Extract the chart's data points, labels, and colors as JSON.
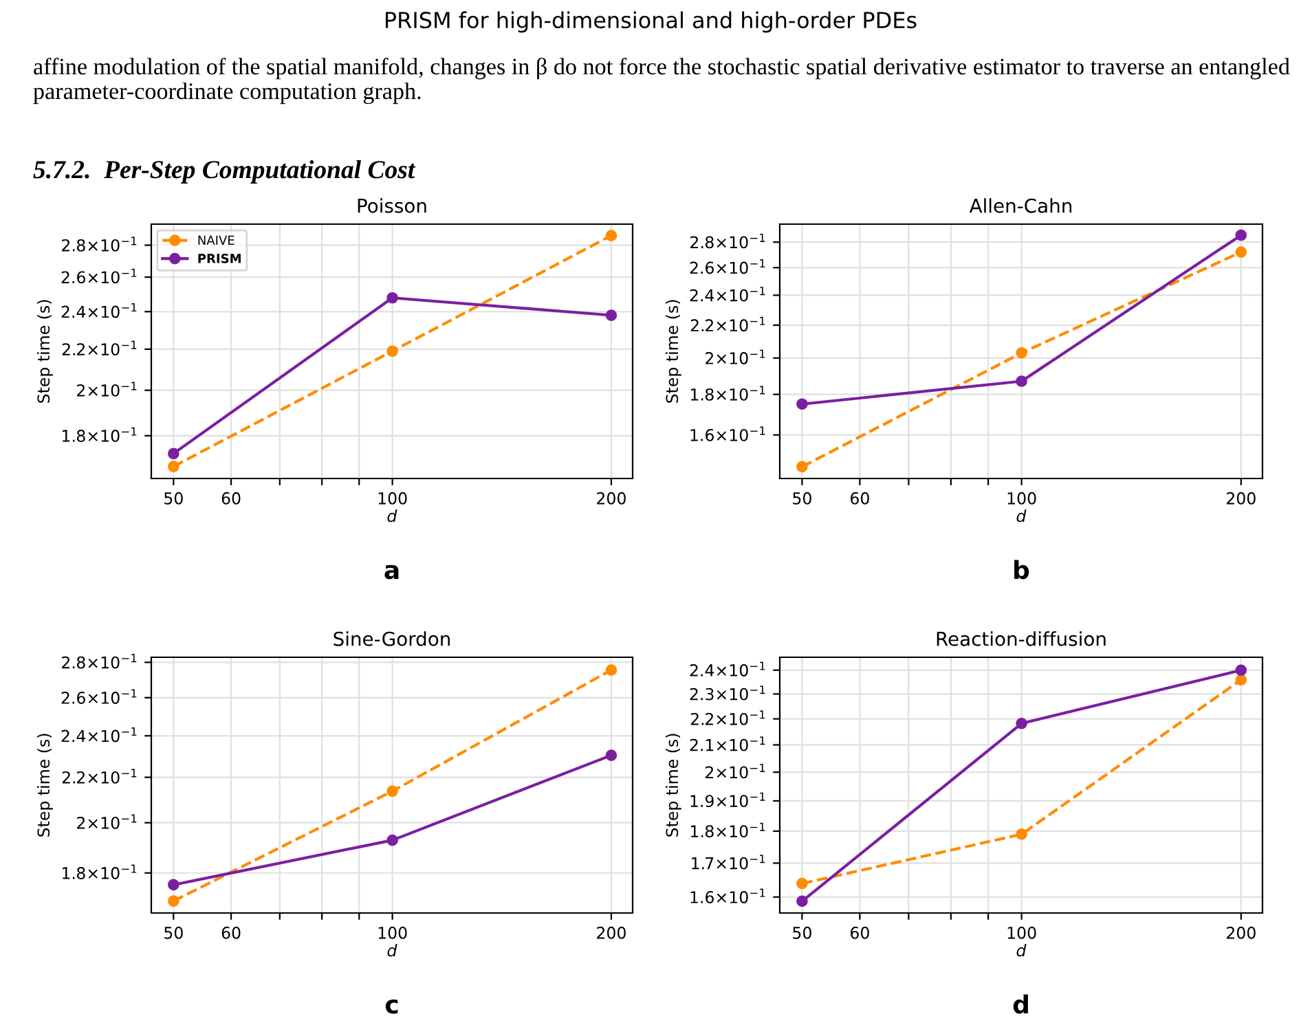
{
  "chart_data": [
    {
      "type": "line",
      "title": "Poisson",
      "xlabel": "d",
      "ylabel": "Step time (s)",
      "log": "xy",
      "grid": true,
      "legend": "top left",
      "marker": "circle",
      "annotations": [
        "PRISM for high-dimensional and high-order PDEs",
        "affine modulation of the spatial manifold, changes in β do not force the stochastic spatial derivative estimator to traverse an entangled parameter-coordinate computation graph.",
        "5.7.2.  Per-Step Computational Cost",
        "a"
      ],
      "x": [
        50,
        100,
        200
      ],
      "xlim": [
        46.6,
        214
      ],
      "xticks": [
        50,
        60,
        {
          "value": 70,
          "label": null
        },
        {
          "value": 80,
          "label": null
        },
        {
          "value": 90,
          "label": null
        },
        100,
        200
      ],
      "ylim": [
        0.163,
        0.294
      ],
      "yticks": [
        {
          "value": 0.18,
          "label": "1.8×10$^{−1}$"
        },
        {
          "value": 0.2,
          "label": "2×10$^{−1}$"
        },
        {
          "value": 0.22,
          "label": "2.2×10$^{−1}$"
        },
        {
          "value": 0.24,
          "label": "2.4×10$^{−1}$"
        },
        {
          "value": 0.26,
          "label": "2.6×10$^{−1}$"
        },
        {
          "value": 0.28,
          "label": "2.8×10$^{−1}$"
        }
      ],
      "series": [
        {
          "name": "NAIVE",
          "color": "#ff8c00",
          "line_style": "dashed",
          "values": [
            0.1676,
            0.219,
            0.2863
          ]
        },
        {
          "name": "PRISM",
          "color": "#7b1fa2",
          "line_style": "solid",
          "values": [
            0.1727,
            0.2478,
            0.238
          ]
        }
      ]
    },
    {
      "type": "line",
      "title": "Allen-Cahn",
      "xlabel": "d",
      "ylabel": "Step time (s)",
      "log": "xy",
      "grid": true,
      "marker": "circle",
      "annotations": [
        "b"
      ],
      "x": [
        50,
        100,
        200
      ],
      "xlim": [
        46.6,
        214
      ],
      "xticks": [
        50,
        60,
        {
          "value": 70,
          "label": null
        },
        {
          "value": 80,
          "label": null
        },
        {
          "value": 90,
          "label": null
        },
        100,
        200
      ],
      "ylim": [
        0.141,
        0.295
      ],
      "yticks": [
        {
          "value": 0.16,
          "label": "1.6×10$^{−1}$"
        },
        {
          "value": 0.18,
          "label": "1.8×10$^{−1}$"
        },
        {
          "value": 0.2,
          "label": "2×10$^{−1}$"
        },
        {
          "value": 0.22,
          "label": "2.2×10$^{−1}$"
        },
        {
          "value": 0.24,
          "label": "2.4×10$^{−1}$"
        },
        {
          "value": 0.26,
          "label": "2.6×10$^{−1}$"
        },
        {
          "value": 0.28,
          "label": "2.8×10$^{−1}$"
        }
      ],
      "series": [
        {
          "color": "#ff8c00",
          "line_style": "dashed",
          "values": [
            0.1459,
            0.203,
            0.272
          ]
        },
        {
          "color": "#7b1fa2",
          "line_style": "solid",
          "values": [
            0.175,
            0.187,
            0.2857
          ]
        }
      ]
    },
    {
      "type": "line",
      "title": "Sine-Gordon",
      "xlabel": "d",
      "ylabel": "Step time (s)",
      "log": "xy",
      "grid": true,
      "marker": "circle",
      "annotations": [
        "c"
      ],
      "x": [
        50,
        100,
        200
      ],
      "xlim": [
        46.6,
        214
      ],
      "xticks": [
        50,
        60,
        {
          "value": 70,
          "label": null
        },
        {
          "value": 80,
          "label": null
        },
        {
          "value": 90,
          "label": null
        },
        100,
        200
      ],
      "ylim": [
        0.1655,
        0.283
      ],
      "yticks": [
        {
          "value": 0.18,
          "label": "1.8×10$^{−1}$"
        },
        {
          "value": 0.2,
          "label": "2×10$^{−1}$"
        },
        {
          "value": 0.22,
          "label": "2.2×10$^{−1}$"
        },
        {
          "value": 0.24,
          "label": "2.4×10$^{−1}$"
        },
        {
          "value": 0.26,
          "label": "2.6×10$^{−1}$"
        },
        {
          "value": 0.28,
          "label": "2.8×10$^{−1}$"
        }
      ],
      "series": [
        {
          "color": "#ff8c00",
          "line_style": "dashed",
          "values": [
            0.1697,
            0.2137,
            0.2755
          ]
        },
        {
          "color": "#7b1fa2",
          "line_style": "solid",
          "values": [
            0.1756,
            0.1928,
            0.2304
          ]
        }
      ]
    },
    {
      "type": "line",
      "title": "Reaction-diffusion",
      "xlabel": "d",
      "ylabel": "Step time (s)",
      "log": "xy",
      "grid": true,
      "marker": "circle",
      "annotations": [
        "d"
      ],
      "x": [
        50,
        100,
        200
      ],
      "xlim": [
        46.6,
        214
      ],
      "xticks": [
        50,
        60,
        {
          "value": 70,
          "label": null
        },
        {
          "value": 80,
          "label": null
        },
        {
          "value": 90,
          "label": null
        },
        100,
        200
      ],
      "ylim": [
        0.1555,
        0.2456
      ],
      "yticks": [
        {
          "value": 0.16,
          "label": "1.6×10$^{−1}$"
        },
        {
          "value": 0.17,
          "label": "1.7×10$^{−1}$"
        },
        {
          "value": 0.18,
          "label": "1.8×10$^{−1}$"
        },
        {
          "value": 0.19,
          "label": "1.9×10$^{−1}$"
        },
        {
          "value": 0.2,
          "label": "2×10$^{−1}$"
        },
        {
          "value": 0.21,
          "label": "2.1×10$^{−1}$"
        },
        {
          "value": 0.22,
          "label": "2.2×10$^{−1}$"
        },
        {
          "value": 0.23,
          "label": "2.3×10$^{−1}$"
        },
        {
          "value": 0.24,
          "label": "2.4×10$^{−1}$"
        }
      ],
      "series": [
        {
          "color": "#ff8c00",
          "line_style": "dashed",
          "values": [
            0.1639,
            0.179,
            0.2359
          ]
        },
        {
          "color": "#7b1fa2",
          "line_style": "solid",
          "values": [
            0.1588,
            0.2182,
            0.24
          ]
        }
      ]
    }
  ]
}
